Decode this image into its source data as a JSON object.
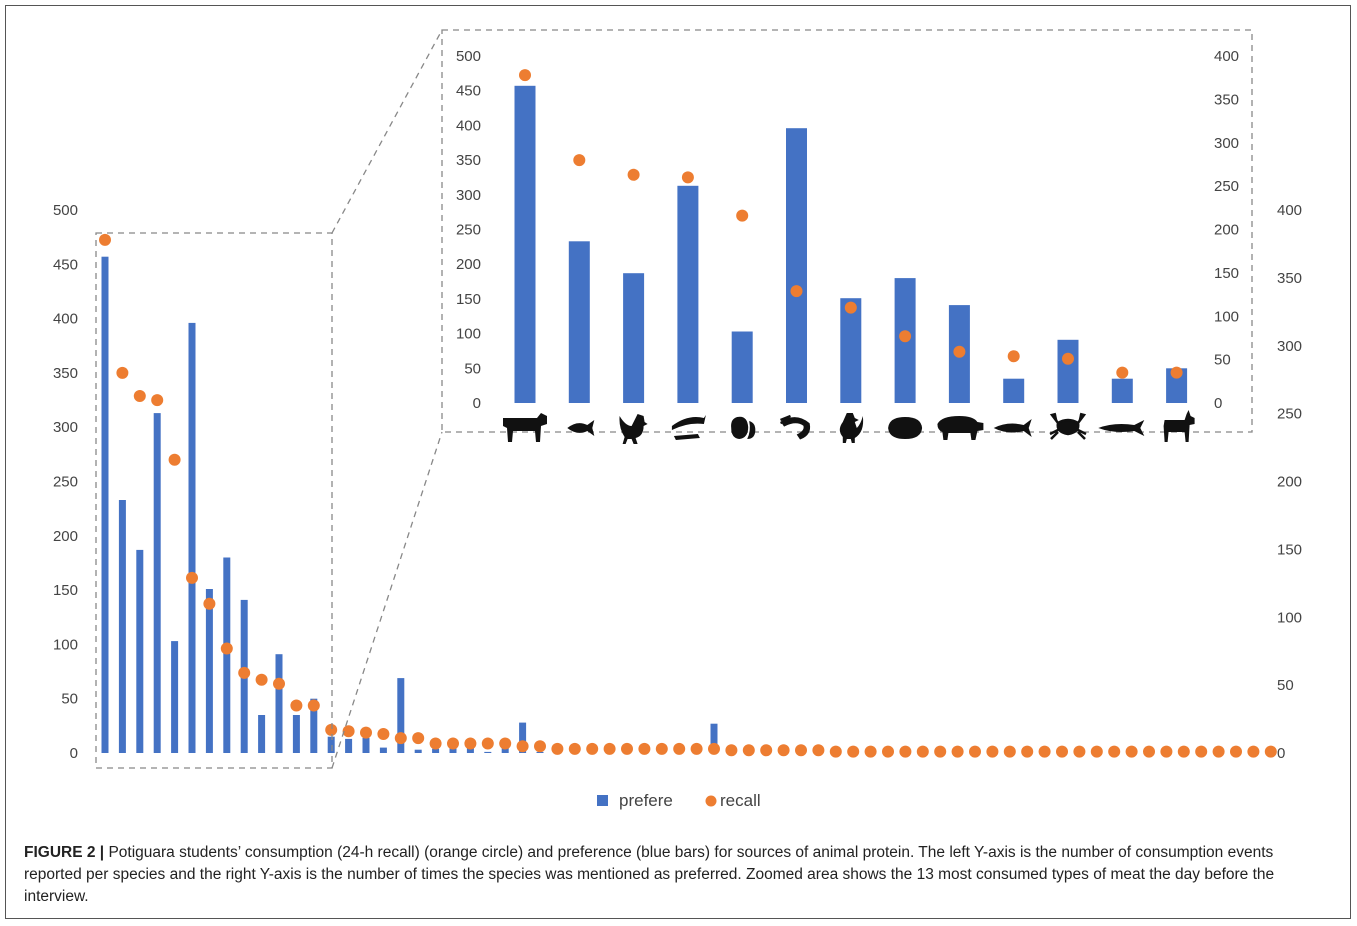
{
  "figure": {
    "caption_label": "FIGURE 2 |",
    "caption_text": " Potiguara students’ consumption (24-h recall) (orange circle) and preference (blue bars) for sources of animal protein. The left Y-axis is the number of consumption events reported per species and the right Y-axis is the number of times the species was mentioned as preferred. Zoomed area shows the 13 most consumed types of meat the day before the interview."
  },
  "colors": {
    "bar": "#4472C4",
    "dot": "#ED7D31"
  },
  "chart_data": [
    {
      "type": "bar",
      "name": "main",
      "left_ylim": [
        0,
        500
      ],
      "left_ticks": [
        0,
        50,
        100,
        150,
        200,
        250,
        300,
        350,
        400,
        450,
        500
      ],
      "right_ylim": [
        0,
        400
      ],
      "right_ticks": [
        0,
        50,
        100,
        150,
        200,
        250,
        300,
        350,
        400
      ],
      "legend": [
        "prefere",
        "recall"
      ],
      "legend_position": "bottom",
      "series": [
        {
          "name": "prefere",
          "axis": "left",
          "values": [
            457,
            233,
            187,
            313,
            103,
            396,
            151,
            180,
            141,
            35,
            91,
            35,
            50,
            15,
            13,
            14,
            5,
            69,
            3,
            4,
            5,
            5,
            1,
            5,
            28,
            1,
            0,
            0,
            0,
            0,
            0,
            0,
            0,
            0,
            0,
            27,
            0,
            0,
            0,
            0,
            0,
            0,
            0,
            0,
            0,
            0,
            0,
            0,
            0,
            0,
            0,
            0,
            0,
            0,
            0,
            0,
            0,
            0,
            0,
            0,
            0,
            0,
            0,
            0,
            0,
            0,
            0,
            0
          ]
        },
        {
          "name": "recall",
          "axis": "right",
          "values": [
            378,
            280,
            263,
            260,
            216,
            129,
            110,
            77,
            59,
            54,
            51,
            35,
            35,
            17,
            16,
            15,
            14,
            11,
            11,
            7,
            7,
            7,
            7,
            7,
            5,
            5,
            3,
            3,
            3,
            3,
            3,
            3,
            3,
            3,
            3,
            3,
            2,
            2,
            2,
            2,
            2,
            2,
            1,
            1,
            1,
            1,
            1,
            1,
            1,
            1,
            1,
            1,
            1,
            1,
            1,
            1,
            1,
            1,
            1,
            1,
            1,
            1,
            1,
            1,
            1,
            1,
            1,
            1
          ]
        }
      ]
    },
    {
      "type": "bar",
      "name": "zoom-inset",
      "left_ylim": [
        0,
        500
      ],
      "left_ticks": [
        0,
        50,
        100,
        150,
        200,
        250,
        300,
        350,
        400,
        450,
        500
      ],
      "right_ylim": [
        0,
        400
      ],
      "right_ticks": [
        0,
        50,
        100,
        150,
        200,
        250,
        300,
        350,
        400
      ],
      "categories": [
        "cattle",
        "fish",
        "chicken",
        "dried-fish",
        "egg",
        "shrimp",
        "hen",
        "oyster",
        "pig",
        "tuna",
        "crab",
        "mullet",
        "goat"
      ],
      "series": [
        {
          "name": "prefere",
          "axis": "left",
          "values": [
            457,
            233,
            187,
            313,
            103,
            396,
            151,
            180,
            141,
            35,
            91,
            35,
            50
          ]
        },
        {
          "name": "recall",
          "axis": "right",
          "values": [
            378,
            280,
            263,
            260,
            216,
            129,
            110,
            77,
            59,
            54,
            51,
            35,
            35
          ]
        }
      ]
    }
  ]
}
